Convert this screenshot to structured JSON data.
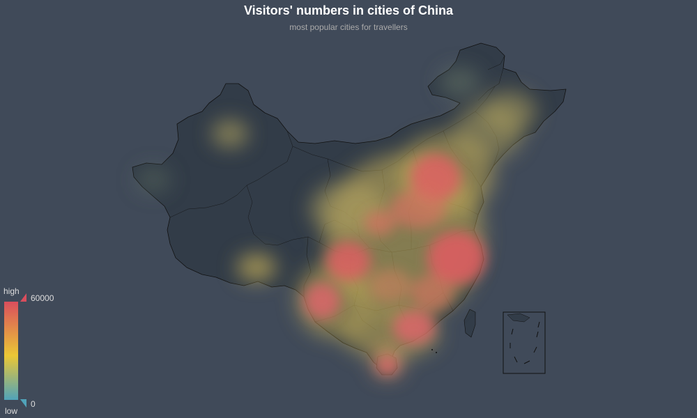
{
  "title": "Visitors' numbers in cities of China",
  "subtitle": "most popular cities for travellers",
  "visual_map": {
    "high_label": "high",
    "low_label": "low",
    "max_value": "60000",
    "min_value": "0",
    "colors": {
      "high": "#d94e5d",
      "mid": "#eac736",
      "low": "#50a3ba"
    }
  },
  "map": {
    "region": "China",
    "background_color": "#404a59",
    "land_color": "#323c48",
    "border_color": "#111111"
  }
}
